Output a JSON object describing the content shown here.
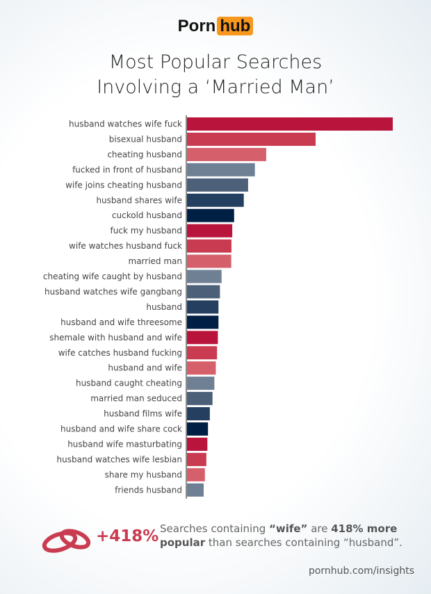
{
  "brand": {
    "part1": "Porn",
    "part2": "hub"
  },
  "chart_data": {
    "type": "bar",
    "orientation": "horizontal",
    "title_line1": "Most Popular Searches",
    "title_line2": "Involving a ‘Married Man’",
    "categories": [
      "husband watches wife fuck",
      "bisexual husband",
      "cheating husband",
      "fucked in front of husband",
      "wife joins cheating husband",
      "husband shares wife",
      "cuckold husband",
      "fuck my husband",
      "wife watches husband fuck",
      "married man",
      "cheating wife caught by husband",
      "husband watches wife gangbang",
      "husband",
      "husband and wife threesome",
      "shemale with husband and wife",
      "wife catches husband fucking",
      "husband and wife",
      "husband caught cheating",
      "married man seduced",
      "husband films wife",
      "husband and wife share cock",
      "husband wife masturbating",
      "husband watches wife lesbian",
      "share my husband",
      "friends husband"
    ],
    "values": [
      100,
      62.5,
      38.5,
      33,
      29.7,
      27.6,
      22.9,
      22,
      21.6,
      21.5,
      16.8,
      16,
      15.3,
      15.3,
      15,
      14.6,
      14,
      13.3,
      12.4,
      11.1,
      10.2,
      9.9,
      9.4,
      8.7,
      8.1
    ],
    "value_units": "relative popularity (top = 100), axis unlabeled",
    "colors": [
      "#b8143c",
      "#c93b50",
      "#d5606b",
      "#6f8095",
      "#4d6079",
      "#253f60",
      "#001f45"
    ],
    "grid": false
  },
  "callout": {
    "stat": "+418%",
    "text_1": "Searches containing ",
    "bold_1": "“wife”",
    "text_2": " are ",
    "bold_2": "418% more popular",
    "text_3": " than searches containing “husband”.",
    "icon": "wedding-rings-icon"
  },
  "source": "pornhub.com/insights"
}
